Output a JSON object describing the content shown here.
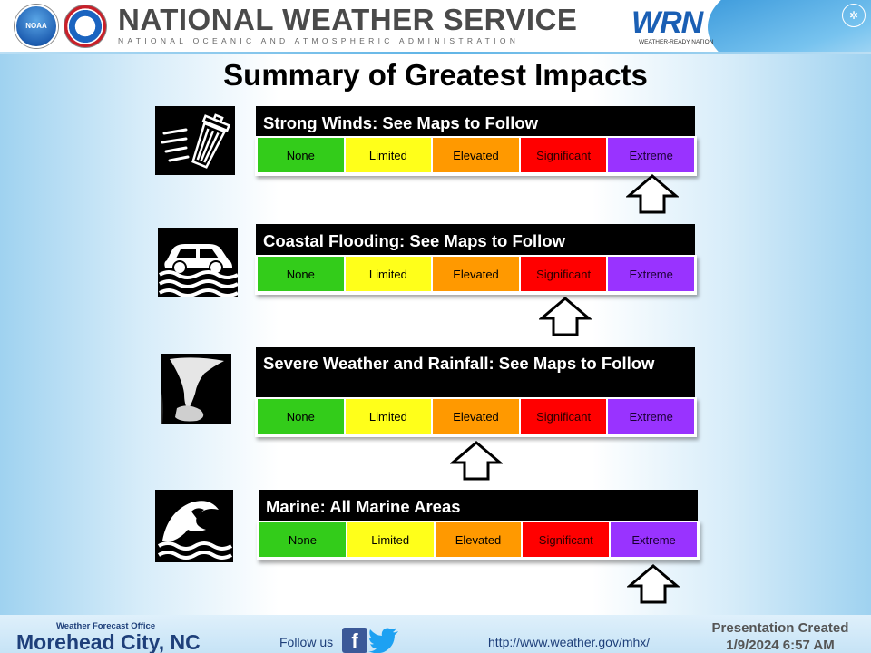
{
  "header": {
    "title": "NATIONAL WEATHER SERVICE",
    "subtitle": "NATIONAL OCEANIC AND ATMOSPHERIC ADMINISTRATION",
    "noaa_logo_text": "NOAA",
    "wrn_logo_text": "WRN",
    "wrn_logo_sub": "WEATHER-READY NATION"
  },
  "slide": {
    "title": "Summary of Greatest Impacts"
  },
  "scale_levels": [
    "None",
    "Limited",
    "Elevated",
    "Significant",
    "Extreme"
  ],
  "impacts": [
    {
      "title": "Strong Winds: See Maps to Follow",
      "icon": "wind-trash-can-icon",
      "selected_level": "Extreme"
    },
    {
      "title": "Coastal Flooding: See Maps to Follow",
      "icon": "flooded-car-icon",
      "selected_level": "Significant"
    },
    {
      "title": "Severe Weather and Rainfall: See Maps to Follow",
      "icon": "tornado-icon",
      "selected_level": "Elevated"
    },
    {
      "title": "Marine: All Marine Areas",
      "icon": "waves-icon",
      "selected_level": "Extreme"
    }
  ],
  "footer": {
    "office_label": "Weather Forecast Office",
    "office_city": "Morehead City, NC",
    "follow_text": "Follow us",
    "url": "http://www.weather.gov/mhx/",
    "presentation_label": "Presentation Created",
    "presentation_date": "1/9/2024 6:57 AM"
  },
  "colors": {
    "none": "#33cc1a",
    "limited": "#ffff1a",
    "elevated": "#ff9900",
    "significant": "#ff0000",
    "extreme": "#9933ff"
  }
}
